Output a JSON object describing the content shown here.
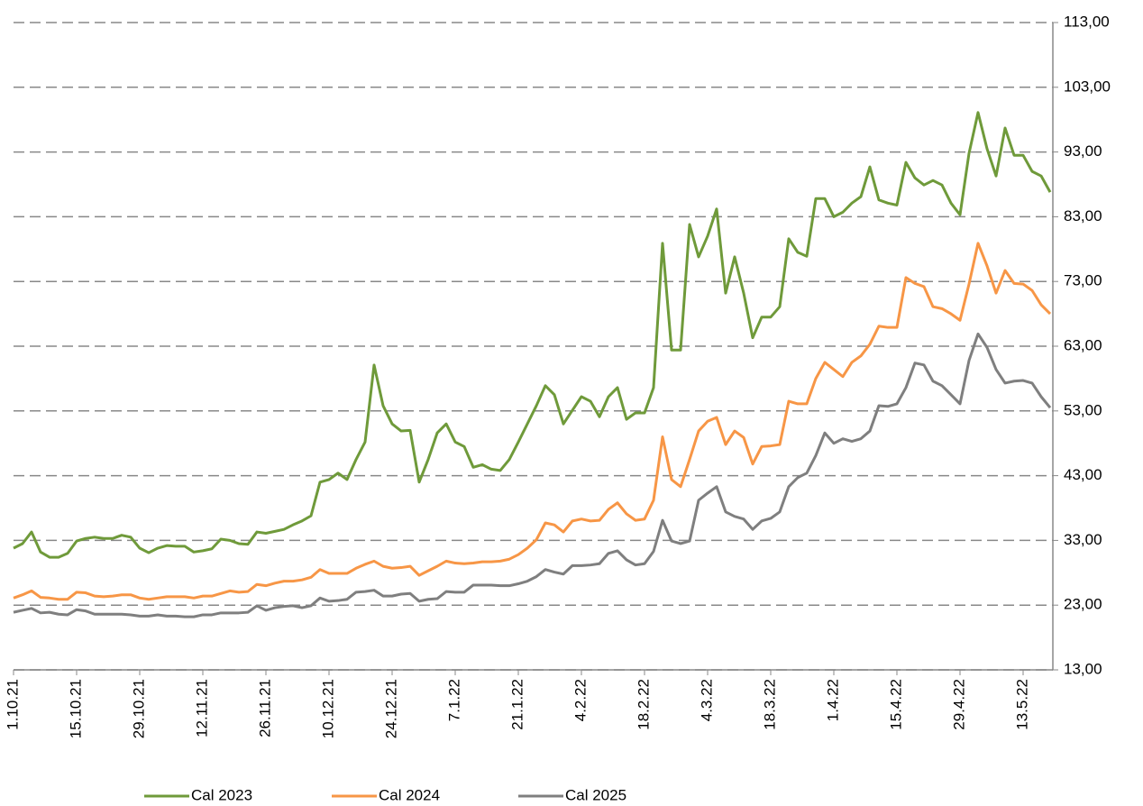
{
  "chart_data": {
    "type": "line",
    "categories": [
      "1.10.21",
      null,
      null,
      null,
      null,
      null,
      null,
      "15.10.21",
      null,
      null,
      null,
      null,
      null,
      null,
      "29.10.21",
      null,
      null,
      null,
      null,
      null,
      null,
      "12.11.21",
      null,
      null,
      null,
      null,
      null,
      null,
      "26.11.21",
      null,
      null,
      null,
      null,
      null,
      null,
      "10.12.21",
      null,
      null,
      null,
      null,
      null,
      null,
      "24.12.21",
      null,
      null,
      null,
      null,
      null,
      null,
      "7.1.22",
      null,
      null,
      null,
      null,
      null,
      null,
      "21.1.22",
      null,
      null,
      null,
      null,
      null,
      null,
      "4.2.22",
      null,
      null,
      null,
      null,
      null,
      null,
      "18.2.22",
      null,
      null,
      null,
      null,
      null,
      null,
      "4.3.22",
      null,
      null,
      null,
      null,
      null,
      null,
      "18.3.22",
      null,
      null,
      null,
      null,
      null,
      null,
      "1.4.22",
      null,
      null,
      null,
      null,
      null,
      null,
      "15.4.22",
      null,
      null,
      null,
      null,
      null,
      null,
      "29.4.22",
      null,
      null,
      null,
      null,
      null,
      null,
      "13.5.22",
      null,
      null,
      null
    ],
    "series": [
      {
        "name": "Cal 2023",
        "color": "#6f9a3a",
        "values": [
          31.8,
          32.5,
          34.3,
          31.2,
          30.4,
          30.4,
          31,
          32.9,
          33.3,
          33.5,
          33.3,
          33.3,
          33.8,
          33.5,
          31.8,
          31.1,
          31.8,
          32.2,
          32.1,
          32.1,
          31.2,
          31.4,
          31.7,
          33.2,
          33,
          32.5,
          32.4,
          34.3,
          34.1,
          34.4,
          34.7,
          35.4,
          36,
          36.8,
          42,
          42.4,
          43.4,
          42.4,
          45.5,
          48.2,
          60.1,
          53.8,
          51,
          49.9,
          50,
          42,
          45.5,
          49.6,
          51,
          48.2,
          47.5,
          44.3,
          44.7,
          44,
          43.8,
          45.5,
          48.2,
          51,
          53.8,
          56.9,
          55.5,
          51,
          53.1,
          55.2,
          54.5,
          52.1,
          55.2,
          56.6,
          51.7,
          52.7,
          52.7,
          56.6,
          78.9,
          62.4,
          62.4,
          81.8,
          76.8,
          80,
          84.2,
          71.2,
          76.8,
          71.2,
          64.3,
          67.5,
          67.5,
          69.1,
          79.6,
          77.5,
          76.9,
          85.8,
          85.8,
          83,
          83.7,
          85.1,
          86.1,
          90.7,
          85.6,
          85.1,
          84.8,
          91.4,
          89,
          87.9,
          88.6,
          87.9,
          85.1,
          83.3,
          92.8,
          99.1,
          93.5,
          89.3,
          96.7,
          92.5,
          92.5,
          90,
          89.3,
          86.8
        ]
      },
      {
        "name": "Cal 2024",
        "color": "#f79646",
        "values": [
          24.1,
          24.6,
          25.2,
          24.2,
          24.1,
          23.9,
          23.9,
          25,
          24.9,
          24.4,
          24.3,
          24.4,
          24.6,
          24.6,
          24.1,
          23.9,
          24.1,
          24.3,
          24.3,
          24.3,
          24.1,
          24.4,
          24.4,
          24.8,
          25.2,
          25,
          25.1,
          26.2,
          26,
          26.4,
          26.7,
          26.7,
          26.9,
          27.3,
          28.5,
          27.9,
          27.9,
          27.9,
          28.7,
          29.3,
          29.8,
          29,
          28.7,
          28.8,
          29,
          27.6,
          28.3,
          29,
          29.8,
          29.5,
          29.4,
          29.5,
          29.7,
          29.7,
          29.8,
          30.1,
          30.8,
          31.8,
          33.1,
          35.7,
          35.4,
          34.3,
          36,
          36.3,
          36,
          36.1,
          37.8,
          38.8,
          37.1,
          36.1,
          36.3,
          39.2,
          49,
          42.4,
          41.3,
          45.5,
          49.9,
          51.4,
          52,
          47.8,
          49.9,
          48.9,
          44.8,
          47.5,
          47.6,
          47.8,
          54.5,
          54.1,
          54.1,
          58,
          60.5,
          59.4,
          58.3,
          60.5,
          61.5,
          63.3,
          66.1,
          65.9,
          65.9,
          73.6,
          72.7,
          72.2,
          69.1,
          68.8,
          68,
          67,
          72.6,
          78.9,
          75.4,
          71.2,
          74.7,
          72.7,
          72.6,
          71.6,
          69.4,
          68
        ]
      },
      {
        "name": "Cal 2025",
        "color": "#7f7f7f",
        "values": [
          21.9,
          22.2,
          22.5,
          21.8,
          21.9,
          21.6,
          21.5,
          22.3,
          22.1,
          21.6,
          21.6,
          21.6,
          21.6,
          21.5,
          21.3,
          21.3,
          21.5,
          21.3,
          21.3,
          21.2,
          21.2,
          21.5,
          21.5,
          21.8,
          21.8,
          21.8,
          21.9,
          22.9,
          22.2,
          22.6,
          22.8,
          22.9,
          22.6,
          22.9,
          24.1,
          23.6,
          23.7,
          23.9,
          25,
          25.1,
          25.3,
          24.4,
          24.4,
          24.7,
          24.8,
          23.6,
          23.9,
          24,
          25.1,
          25,
          25,
          26.1,
          26.1,
          26.1,
          26,
          26,
          26.3,
          26.7,
          27.4,
          28.5,
          28.1,
          27.8,
          29.1,
          29.1,
          29.2,
          29.4,
          31,
          31.4,
          30,
          29.2,
          29.4,
          31.3,
          36.1,
          32.9,
          32.5,
          32.9,
          39.2,
          40.3,
          41.3,
          37.4,
          36.7,
          36.3,
          34.7,
          36,
          36.4,
          37.4,
          41.3,
          42.7,
          43.4,
          46.1,
          49.6,
          48,
          48.7,
          48.3,
          48.7,
          49.9,
          53.8,
          53.7,
          54.1,
          56.6,
          60.4,
          60.1,
          57.6,
          56.9,
          55.5,
          54.1,
          60.8,
          64.9,
          62.8,
          59.4,
          57.3,
          57.6,
          57.7,
          57.3,
          55.2,
          53.5
        ]
      }
    ],
    "ylim": [
      13,
      113
    ],
    "yticks": [
      {
        "value": 13,
        "label": "13,00"
      },
      {
        "value": 23,
        "label": "23,00"
      },
      {
        "value": 33,
        "label": "33,00"
      },
      {
        "value": 43,
        "label": "43,00"
      },
      {
        "value": 53,
        "label": "53,00"
      },
      {
        "value": 63,
        "label": "63,00"
      },
      {
        "value": 73,
        "label": "73,00"
      },
      {
        "value": 83,
        "label": "83,00"
      },
      {
        "value": 93,
        "label": "93,00"
      },
      {
        "value": 103,
        "label": "103,00"
      },
      {
        "value": 113,
        "label": "113,00"
      }
    ],
    "grid": true,
    "legend": "bottom"
  }
}
